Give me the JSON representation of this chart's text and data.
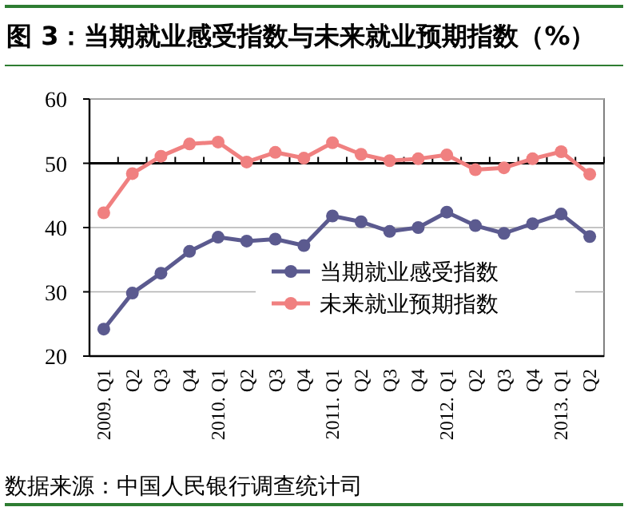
{
  "chart_data": {
    "type": "line",
    "title": "图 3：当期就业感受指数与未来就业预期指数（%）",
    "categories": [
      "2009. Q1",
      "Q2",
      "Q3",
      "Q4",
      "2010. Q1",
      "Q2",
      "Q3",
      "Q4",
      "2011. Q1",
      "Q2",
      "Q3",
      "Q4",
      "2012. Q1",
      "Q2",
      "Q3",
      "Q4",
      "2013. Q1",
      "Q2"
    ],
    "series": [
      {
        "name": "当期就业感受指数",
        "color": "#5b5a8f",
        "values": [
          24.2,
          29.8,
          32.9,
          36.3,
          38.5,
          37.9,
          38.2,
          37.2,
          41.8,
          40.9,
          39.4,
          40.0,
          42.4,
          40.3,
          39.1,
          40.6,
          42.1,
          38.6
        ]
      },
      {
        "name": "未来就业预期指数",
        "color": "#f08080",
        "values": [
          42.3,
          48.4,
          51.1,
          53.0,
          53.3,
          50.2,
          51.7,
          50.8,
          53.2,
          51.4,
          50.4,
          50.7,
          51.3,
          49.0,
          49.3,
          50.7,
          51.8,
          48.3
        ]
      }
    ],
    "ylim": [
      20,
      60
    ],
    "yticks": [
      20,
      30,
      40,
      50,
      60
    ],
    "grid": "y",
    "legend": "bottom right",
    "marker": "circle",
    "line_style": "solid",
    "ref_lines": [
      {
        "axis": "y",
        "value": 50,
        "color": "#000000"
      }
    ],
    "annotations": [
      "数据来源：中国人民银行调查统计司"
    ]
  }
}
